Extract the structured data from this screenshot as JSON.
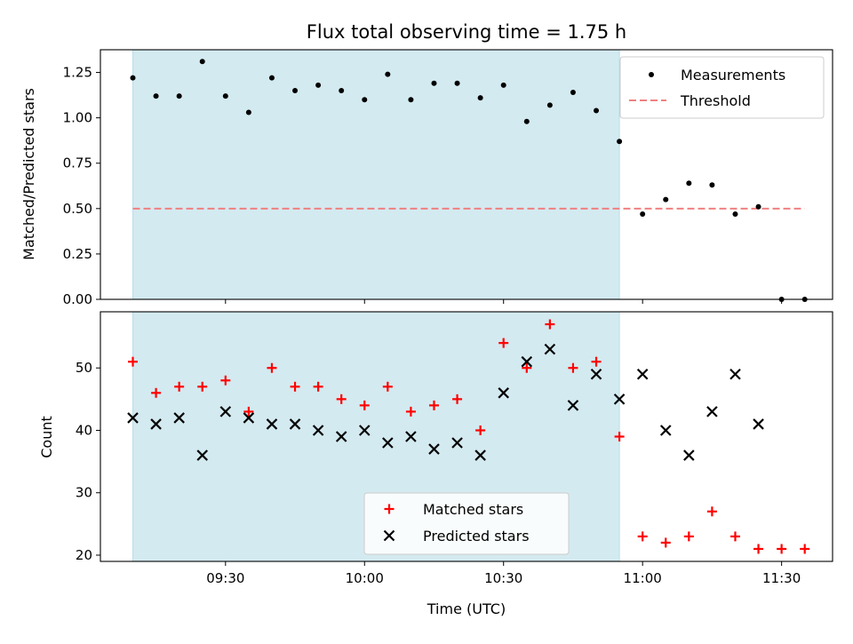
{
  "title": "Flux total observing time = 1.75 h",
  "colors": {
    "observing_span": "#d3eaf0",
    "measurement": "#000000",
    "threshold": "#f08080",
    "matched": "#ff0000",
    "predicted": "#000000"
  },
  "chart_data": [
    {
      "type": "scatter",
      "panel": "top",
      "ylabel": "Matched/Predicted stars",
      "ylim": [
        0,
        1.375
      ],
      "yticks": [
        0.0,
        0.25,
        0.5,
        0.75,
        1.0,
        1.25
      ],
      "ytick_labels": [
        "0.00",
        "0.25",
        "0.50",
        "0.75",
        "1.00",
        "1.25"
      ],
      "shaded_span": {
        "start": "09:10",
        "end": "10:55"
      },
      "threshold": {
        "y": 0.5,
        "x_start": "09:10",
        "x_end": "11:35"
      },
      "legend": {
        "placement": "top-right",
        "entries": [
          "Measurements",
          "Threshold"
        ]
      },
      "series": [
        {
          "name": "Measurements",
          "marker": "dot",
          "x": [
            "09:10",
            "09:15",
            "09:20",
            "09:25",
            "09:30",
            "09:35",
            "09:40",
            "09:45",
            "09:50",
            "09:55",
            "10:00",
            "10:05",
            "10:10",
            "10:15",
            "10:20",
            "10:25",
            "10:30",
            "10:35",
            "10:40",
            "10:45",
            "10:50",
            "10:55",
            "11:00",
            "11:05",
            "11:10",
            "11:15",
            "11:20",
            "11:25",
            "11:30",
            "11:35"
          ],
          "y": [
            1.22,
            1.12,
            1.12,
            1.31,
            1.12,
            1.03,
            1.22,
            1.15,
            1.18,
            1.15,
            1.1,
            1.24,
            1.1,
            1.19,
            1.19,
            1.11,
            1.18,
            0.98,
            1.07,
            1.14,
            1.04,
            0.87,
            0.47,
            0.55,
            0.64,
            0.63,
            0.47,
            0.51,
            0.0,
            0.0
          ]
        }
      ]
    },
    {
      "type": "scatter",
      "panel": "bottom",
      "xlabel": "Time (UTC)",
      "ylabel": "Count",
      "ylim": [
        19,
        59
      ],
      "yticks": [
        20,
        30,
        40,
        50
      ],
      "ytick_labels": [
        "20",
        "30",
        "40",
        "50"
      ],
      "xlim": [
        "09:03",
        "11:41"
      ],
      "xticks": [
        "09:30",
        "10:00",
        "10:30",
        "11:00",
        "11:30"
      ],
      "xtick_labels": [
        "09:30",
        "10:00",
        "10:30",
        "11:00",
        "11:30"
      ],
      "shaded_span": {
        "start": "09:10",
        "end": "10:55"
      },
      "legend": {
        "placement": "bottom-center",
        "entries": [
          "Matched stars",
          "Predicted stars"
        ]
      },
      "series": [
        {
          "name": "Matched stars",
          "marker": "plus",
          "x": [
            "09:10",
            "09:15",
            "09:20",
            "09:25",
            "09:30",
            "09:35",
            "09:40",
            "09:45",
            "09:50",
            "09:55",
            "10:00",
            "10:05",
            "10:10",
            "10:15",
            "10:20",
            "10:25",
            "10:30",
            "10:35",
            "10:40",
            "10:45",
            "10:50",
            "10:55",
            "11:00",
            "11:05",
            "11:10",
            "11:15",
            "11:20",
            "11:25",
            "11:30",
            "11:35"
          ],
          "y": [
            51,
            46,
            47,
            47,
            48,
            43,
            50,
            47,
            47,
            45,
            44,
            47,
            43,
            44,
            45,
            40,
            54,
            50,
            57,
            50,
            51,
            39,
            23,
            22,
            23,
            27,
            23,
            21,
            21,
            21
          ]
        },
        {
          "name": "Predicted stars",
          "marker": "x",
          "x": [
            "09:10",
            "09:15",
            "09:20",
            "09:25",
            "09:30",
            "09:35",
            "09:40",
            "09:45",
            "09:50",
            "09:55",
            "10:00",
            "10:05",
            "10:10",
            "10:15",
            "10:20",
            "10:25",
            "10:30",
            "10:35",
            "10:40",
            "10:45",
            "10:50",
            "10:55",
            "11:00",
            "11:05",
            "11:10",
            "11:15",
            "11:20",
            "11:25"
          ],
          "y": [
            42,
            41,
            42,
            36,
            43,
            42,
            41,
            41,
            40,
            39,
            40,
            38,
            39,
            37,
            38,
            36,
            46,
            51,
            53,
            44,
            49,
            45,
            49,
            40,
            36,
            43,
            49,
            41
          ]
        }
      ]
    }
  ]
}
